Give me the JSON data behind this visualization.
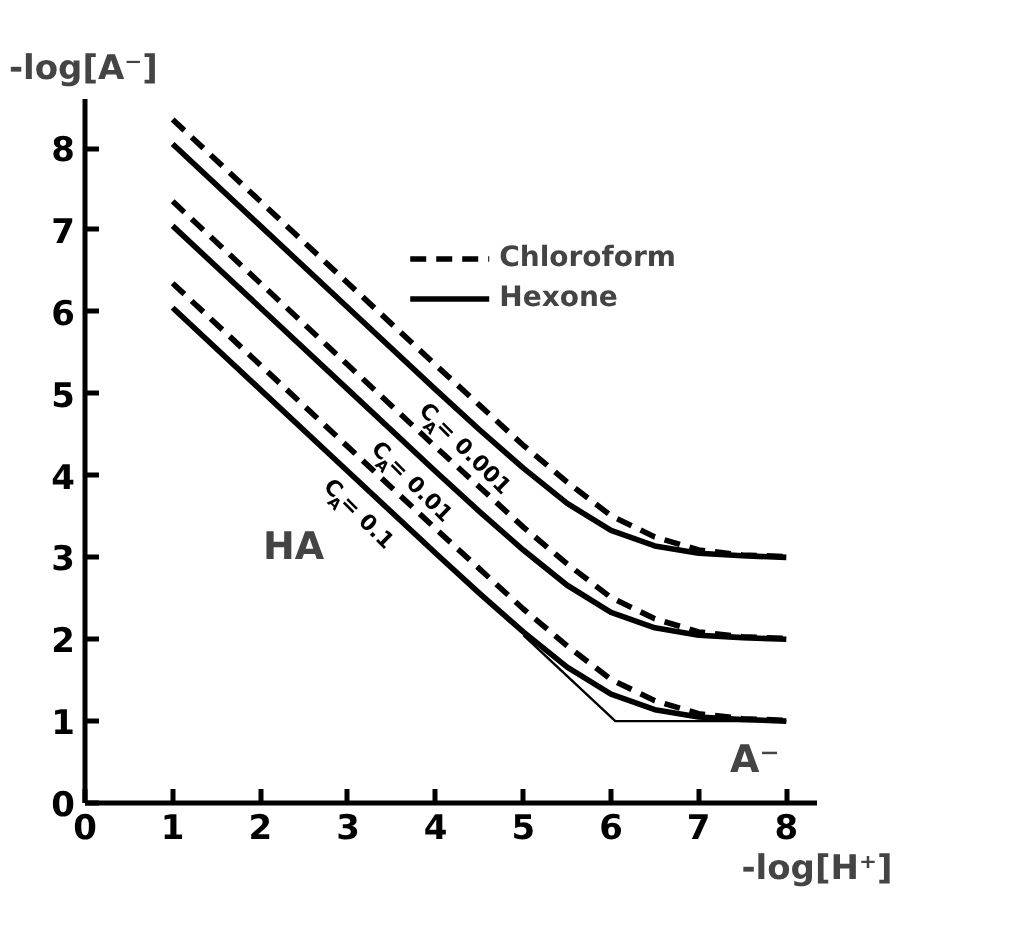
{
  "chart_data": {
    "type": "line",
    "xlabel": "-log[H⁺]",
    "ylabel": "-log[A⁻]",
    "x": [
      1,
      2,
      3,
      4,
      4.5,
      5,
      5.5,
      6,
      6.5,
      7,
      7.5,
      8
    ],
    "series": [
      {
        "name": "Chloroform",
        "color": "#000000",
        "line_style": "dashed",
        "values": [
          8.35,
          7.35,
          6.35,
          5.35,
          4.86,
          4.37,
          3.92,
          3.51,
          3.25,
          3.09,
          3.03,
          3.01
        ]
      },
      {
        "name": "Hexone",
        "color": "#000000",
        "line_style": "solid",
        "values": [
          8.05,
          7.05,
          6.05,
          5.05,
          4.56,
          4.09,
          3.66,
          3.33,
          3.14,
          3.05,
          3.02,
          3.0
        ]
      },
      {
        "color": "#000000",
        "line_style": "dashed",
        "values": [
          7.35,
          6.35,
          5.35,
          4.35,
          3.86,
          3.37,
          2.92,
          2.51,
          2.25,
          2.09,
          2.03,
          2.01
        ]
      },
      {
        "color": "#000000",
        "line_style": "solid",
        "values": [
          7.05,
          6.05,
          5.05,
          4.05,
          3.56,
          3.09,
          2.66,
          2.33,
          2.14,
          2.05,
          2.02,
          2.0
        ]
      },
      {
        "color": "#000000",
        "line_style": "dashed",
        "values": [
          6.35,
          5.35,
          4.35,
          3.35,
          2.86,
          2.37,
          1.92,
          1.51,
          1.25,
          1.09,
          1.03,
          1.01
        ]
      },
      {
        "color": "#000000",
        "line_style": "solid",
        "values": [
          6.05,
          5.05,
          4.05,
          3.05,
          2.56,
          2.09,
          1.66,
          1.33,
          1.14,
          1.05,
          1.02,
          1.0
        ]
      },
      {
        "color": "#000000",
        "line_style": "solid",
        "x": [
          5,
          6.05,
          8
        ],
        "values": [
          2.05,
          1,
          1
        ]
      }
    ],
    "annotations": [
      {
        "text": "C$_{A}$ = 0.001",
        "x": 4.6,
        "y": 4.46
      },
      {
        "text": "C$_{A}$ = 0.01",
        "x": 4.0,
        "y": 4.05
      },
      {
        "text": "C$_{A}$ = 0.1",
        "x": 3.4,
        "y": 3.65
      },
      "HA",
      "A⁻"
    ],
    "xlim": [
      0,
      8.35
    ],
    "ylim": [
      0,
      8.6
    ],
    "xticks": [
      0,
      1,
      2,
      3,
      4,
      5,
      6,
      7,
      8
    ],
    "yticks": [
      0,
      1,
      2,
      3,
      4,
      5,
      6,
      7,
      8
    ],
    "grid": false,
    "legend": "top right"
  }
}
